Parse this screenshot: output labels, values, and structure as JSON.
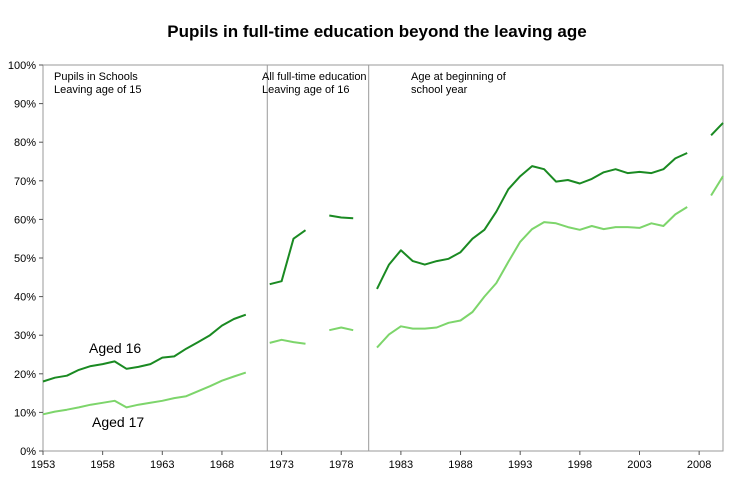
{
  "chart_data": {
    "type": "line",
    "title": "Pupils in full-time education beyond the leaving age",
    "xlabel": "",
    "ylabel": "",
    "xlim": [
      1953,
      2010
    ],
    "ylim": [
      0,
      100
    ],
    "x_ticks": [
      1953,
      1958,
      1963,
      1968,
      1973,
      1978,
      1983,
      1988,
      1993,
      1998,
      2003,
      2008
    ],
    "x_tick_labels": [
      "1953",
      "1958",
      "1963",
      "1968",
      "1973",
      "1978",
      "1983",
      "1988",
      "1993",
      "1998",
      "2003",
      "2008"
    ],
    "y_ticks": [
      0,
      10,
      20,
      30,
      40,
      50,
      60,
      70,
      80,
      90,
      100
    ],
    "y_tick_labels": [
      "0%",
      "10%",
      "20%",
      "30%",
      "40%",
      "50%",
      "60%",
      "70%",
      "80%",
      "90%",
      "100%"
    ],
    "period_dividers": [
      1971.8,
      1980.3
    ],
    "period_annotations": [
      {
        "lines": [
          "Pupils in Schools",
          "Leaving age of 15"
        ]
      },
      {
        "lines": [
          "All full-time education",
          "Leaving age of 16"
        ]
      },
      {
        "lines": [
          "Age at beginning of",
          "school year"
        ]
      }
    ],
    "series": [
      {
        "name": "Aged 16",
        "color": "#1a8a22",
        "segments": [
          {
            "x": [
              1953,
              1954,
              1955,
              1956,
              1957,
              1958,
              1959,
              1960,
              1961,
              1962,
              1963,
              1964,
              1965,
              1966,
              1967,
              1968,
              1969,
              1970
            ],
            "y": [
              18.0,
              19.0,
              19.5,
              21.0,
              22.0,
              22.5,
              23.2,
              21.3,
              21.8,
              22.5,
              24.2,
              24.5,
              26.5,
              28.2,
              30.0,
              32.5,
              34.2,
              35.3
            ]
          },
          {
            "x": [
              1972,
              1973,
              1974,
              1975
            ],
            "y": [
              43.2,
              44.0,
              55.0,
              57.2
            ]
          },
          {
            "x": [
              1977,
              1978,
              1979
            ],
            "y": [
              61.0,
              60.5,
              60.3
            ]
          },
          {
            "x": [
              1981,
              1982,
              1983,
              1984,
              1985,
              1986,
              1987,
              1988,
              1989,
              1990,
              1991,
              1992,
              1993,
              1994,
              1995,
              1996,
              1997,
              1998,
              1999,
              2000,
              2001,
              2002,
              2003,
              2004,
              2005,
              2006,
              2007
            ],
            "y": [
              42.0,
              48.3,
              52.0,
              49.2,
              48.3,
              49.2,
              49.8,
              51.5,
              55.0,
              57.3,
              62.0,
              67.8,
              71.2,
              73.8,
              73.0,
              69.8,
              70.2,
              69.3,
              70.5,
              72.2,
              73.0,
              72.0,
              72.3,
              72.0,
              73.0,
              75.8,
              77.2
            ]
          },
          {
            "x": [
              2009,
              2010
            ],
            "y": [
              81.8,
              85.0
            ]
          }
        ]
      },
      {
        "name": "Aged 17",
        "color": "#7dd56b",
        "segments": [
          {
            "x": [
              1953,
              1954,
              1955,
              1956,
              1957,
              1958,
              1959,
              1960,
              1961,
              1962,
              1963,
              1964,
              1965,
              1966,
              1967,
              1968,
              1969,
              1970
            ],
            "y": [
              9.5,
              10.2,
              10.7,
              11.3,
              12.0,
              12.5,
              13.0,
              11.3,
              12.0,
              12.5,
              13.0,
              13.7,
              14.2,
              15.5,
              16.8,
              18.2,
              19.3,
              20.3
            ]
          },
          {
            "x": [
              1972,
              1973,
              1974,
              1975
            ],
            "y": [
              28.0,
              28.8,
              28.2,
              27.8
            ]
          },
          {
            "x": [
              1977,
              1978,
              1979
            ],
            "y": [
              31.3,
              32.0,
              31.3
            ]
          },
          {
            "x": [
              1981,
              1982,
              1983,
              1984,
              1985,
              1986,
              1987,
              1988,
              1989,
              1990,
              1991,
              1992,
              1993,
              1994,
              1995,
              1996,
              1997,
              1998,
              1999,
              2000,
              2001,
              2002,
              2003,
              2004,
              2005,
              2006,
              2007
            ],
            "y": [
              26.8,
              30.2,
              32.3,
              31.7,
              31.7,
              32.0,
              33.2,
              33.8,
              36.0,
              40.0,
              43.5,
              49.0,
              54.2,
              57.5,
              59.3,
              59.0,
              58.0,
              57.3,
              58.3,
              57.5,
              58.0,
              58.0,
              57.8,
              59.0,
              58.3,
              61.3,
              63.2
            ]
          },
          {
            "x": [
              2009,
              2010
            ],
            "y": [
              66.2,
              71.2
            ]
          }
        ]
      }
    ],
    "series_labels": [
      "Aged 16",
      "Aged 17"
    ]
  }
}
